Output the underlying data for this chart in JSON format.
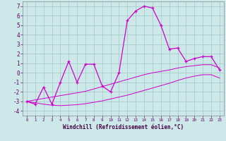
{
  "x_values": [
    0,
    1,
    2,
    3,
    4,
    5,
    6,
    7,
    8,
    9,
    10,
    11,
    12,
    13,
    14,
    15,
    16,
    17,
    18,
    19,
    20,
    21,
    22,
    23
  ],
  "main_line": [
    -3.0,
    -3.3,
    -1.5,
    -3.3,
    -1.0,
    1.2,
    -1.0,
    0.9,
    0.9,
    -1.4,
    -2.0,
    0.0,
    5.5,
    6.5,
    7.0,
    6.8,
    5.0,
    2.5,
    2.6,
    1.2,
    1.5,
    1.7,
    1.7,
    0.3
  ],
  "upper_band": [
    -3.0,
    -2.85,
    -2.7,
    -2.55,
    -2.4,
    -2.25,
    -2.1,
    -1.95,
    -1.7,
    -1.45,
    -1.2,
    -0.95,
    -0.7,
    -0.45,
    -0.2,
    0.0,
    0.15,
    0.3,
    0.5,
    0.65,
    0.75,
    0.85,
    0.85,
    0.5
  ],
  "lower_band": [
    -3.0,
    -3.15,
    -3.3,
    -3.4,
    -3.45,
    -3.4,
    -3.35,
    -3.25,
    -3.1,
    -2.95,
    -2.75,
    -2.55,
    -2.35,
    -2.1,
    -1.85,
    -1.6,
    -1.35,
    -1.1,
    -0.8,
    -0.55,
    -0.35,
    -0.2,
    -0.2,
    -0.55
  ],
  "bg_color": "#cce8e8",
  "grid_color": "#aacccc",
  "line_color": "#cc00cc",
  "xlabel": "Windchill (Refroidissement éolien,°C)",
  "ylim": [
    -4.5,
    7.5
  ],
  "xlim": [
    -0.5,
    23.5
  ],
  "yticks": [
    -4,
    -3,
    -2,
    -1,
    0,
    1,
    2,
    3,
    4,
    5,
    6,
    7
  ],
  "xticks": [
    0,
    1,
    2,
    3,
    4,
    5,
    6,
    7,
    8,
    9,
    10,
    11,
    12,
    13,
    14,
    15,
    16,
    17,
    18,
    19,
    20,
    21,
    22,
    23
  ]
}
